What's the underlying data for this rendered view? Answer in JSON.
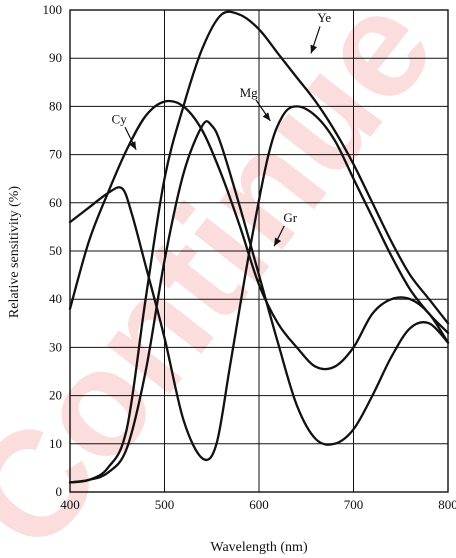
{
  "chart_data": {
    "type": "line",
    "xlabel": "Wavelength (nm)",
    "ylabel": "Relative sensitivity (%)",
    "xlim": [
      400,
      800
    ],
    "ylim": [
      0,
      100
    ],
    "x_ticks": [
      400,
      500,
      600,
      700,
      800
    ],
    "y_ticks": [
      0,
      10,
      20,
      30,
      40,
      50,
      60,
      70,
      80,
      90,
      100
    ],
    "grid": true,
    "series": [
      {
        "name": "Ye",
        "points": [
          [
            400,
            2
          ],
          [
            420,
            2.5
          ],
          [
            440,
            5
          ],
          [
            460,
            13
          ],
          [
            480,
            40
          ],
          [
            500,
            65
          ],
          [
            520,
            80
          ],
          [
            540,
            92
          ],
          [
            560,
            99
          ],
          [
            580,
            99
          ],
          [
            600,
            96
          ],
          [
            620,
            91
          ],
          [
            640,
            86
          ],
          [
            660,
            81
          ],
          [
            680,
            75
          ],
          [
            700,
            68
          ],
          [
            720,
            60
          ],
          [
            740,
            52
          ],
          [
            760,
            45
          ],
          [
            780,
            40
          ],
          [
            800,
            35
          ]
        ]
      },
      {
        "name": "Mg",
        "points": [
          [
            400,
            56
          ],
          [
            420,
            59
          ],
          [
            440,
            62
          ],
          [
            455,
            63
          ],
          [
            465,
            58
          ],
          [
            480,
            47
          ],
          [
            500,
            32
          ],
          [
            520,
            15
          ],
          [
            540,
            7
          ],
          [
            555,
            10
          ],
          [
            570,
            27
          ],
          [
            590,
            50
          ],
          [
            610,
            70
          ],
          [
            625,
            78
          ],
          [
            640,
            80
          ],
          [
            660,
            78
          ],
          [
            680,
            73
          ],
          [
            700,
            65
          ],
          [
            720,
            57
          ],
          [
            740,
            49
          ],
          [
            760,
            42
          ],
          [
            780,
            37
          ],
          [
            800,
            33
          ]
        ]
      },
      {
        "name": "Cy",
        "points": [
          [
            400,
            38
          ],
          [
            420,
            52
          ],
          [
            440,
            62
          ],
          [
            460,
            71
          ],
          [
            480,
            78
          ],
          [
            500,
            81
          ],
          [
            520,
            80
          ],
          [
            540,
            75
          ],
          [
            560,
            66
          ],
          [
            580,
            55
          ],
          [
            600,
            43
          ],
          [
            620,
            35
          ],
          [
            640,
            30
          ],
          [
            660,
            26
          ],
          [
            680,
            26
          ],
          [
            700,
            30
          ],
          [
            720,
            37
          ],
          [
            740,
            40
          ],
          [
            760,
            40
          ],
          [
            780,
            37
          ],
          [
            800,
            31
          ]
        ]
      },
      {
        "name": "Gr",
        "points": [
          [
            400,
            2
          ],
          [
            420,
            2.5
          ],
          [
            440,
            4
          ],
          [
            460,
            9
          ],
          [
            480,
            25
          ],
          [
            500,
            48
          ],
          [
            520,
            66
          ],
          [
            540,
            76
          ],
          [
            550,
            76
          ],
          [
            560,
            72
          ],
          [
            580,
            59
          ],
          [
            600,
            45
          ],
          [
            620,
            31
          ],
          [
            640,
            18
          ],
          [
            660,
            11
          ],
          [
            680,
            10
          ],
          [
            700,
            13
          ],
          [
            720,
            20
          ],
          [
            740,
            28
          ],
          [
            760,
            34
          ],
          [
            780,
            35
          ],
          [
            800,
            31
          ]
        ]
      }
    ],
    "series_labels": [
      {
        "name": "Ye",
        "text": "Ye",
        "anchor": [
          669,
          97.5
        ],
        "arrow_to": [
          655,
          91
        ]
      },
      {
        "name": "Mg",
        "text": "Mg",
        "anchor": [
          589,
          82
        ],
        "arrow_to": [
          612,
          77
        ]
      },
      {
        "name": "Cy",
        "text": "Cy",
        "anchor": [
          452,
          76.5
        ],
        "arrow_to": [
          470,
          71
        ]
      },
      {
        "name": "Gr",
        "text": "Gr",
        "anchor": [
          633,
          56
        ],
        "arrow_to": [
          616,
          51
        ]
      }
    ]
  },
  "watermark_text": "Continue"
}
